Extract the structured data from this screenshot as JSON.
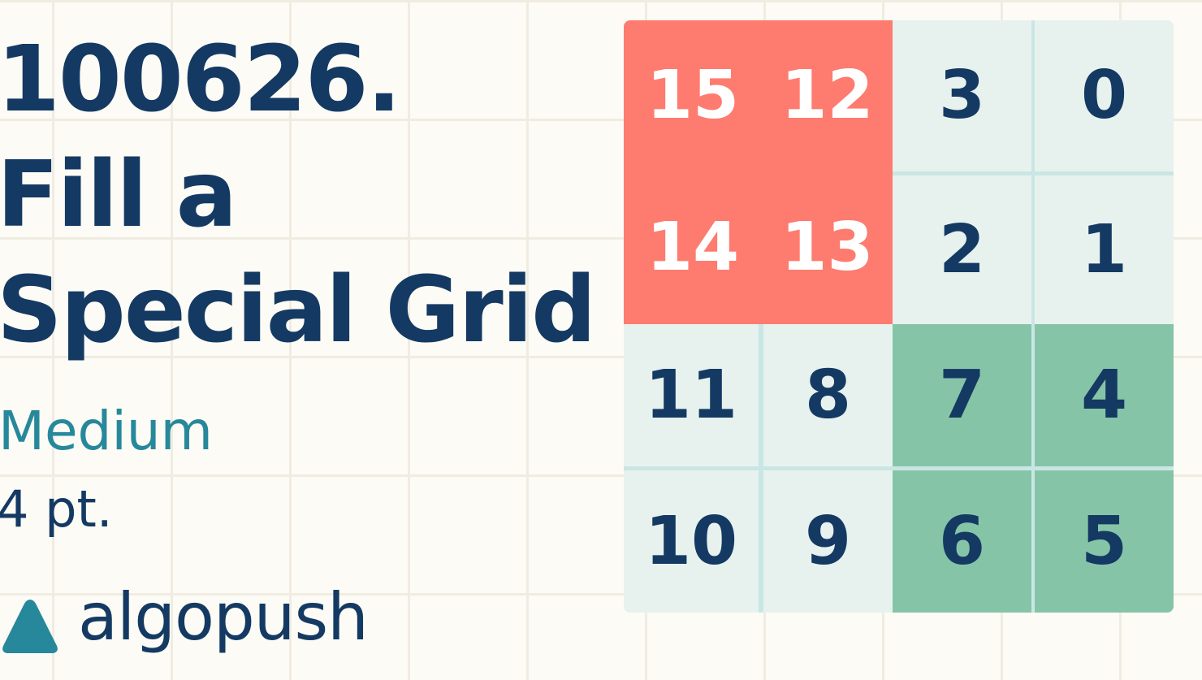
{
  "problem": {
    "id": "100626.",
    "title_line1": "Fill a",
    "title_line2": "Special Grid",
    "difficulty": "Medium",
    "points": "4 pt."
  },
  "brand": {
    "name": "algopush",
    "logo_icon": "triangle-logo-icon"
  },
  "colors": {
    "background": "#fdfbf5",
    "grid_lines": "#f0ece2",
    "text_primary": "#143a63",
    "difficulty_medium": "#27889b",
    "cell_default": "#e7f2ee",
    "cell_highlight_red": "#fe7b6f",
    "cell_highlight_green": "#86c4a8"
  },
  "grid": {
    "rows": [
      [
        "15",
        "12",
        "3",
        "0"
      ],
      [
        "14",
        "13",
        "2",
        "1"
      ],
      [
        "11",
        "8",
        "7",
        "4"
      ],
      [
        "10",
        "9",
        "6",
        "5"
      ]
    ]
  }
}
